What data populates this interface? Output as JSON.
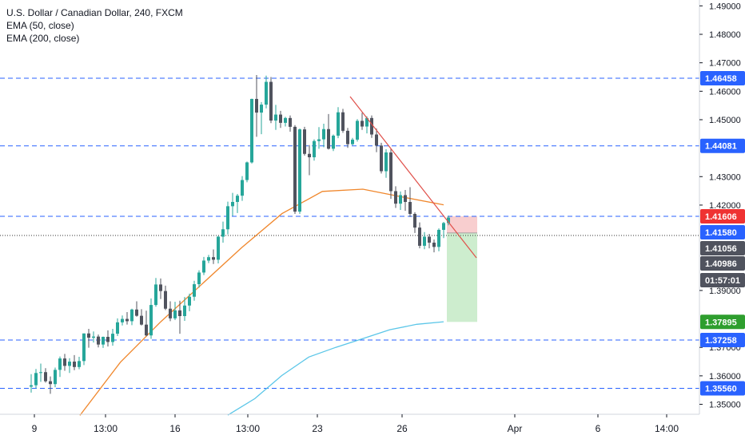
{
  "legend": {
    "title": "U.S. Dollar / Canadian Dollar, 240, FXCM",
    "ema50": "EMA (50, close)",
    "ema200": "EMA (200, close)"
  },
  "colors": {
    "up": "#26a69a",
    "down": "#50535e",
    "ema50": "#f0872c",
    "ema200": "#5bc6e8",
    "hline": "#2962ff",
    "trendline": "#e0504a",
    "risk_zone": "#f7c6c7",
    "reward_zone": "#c8ebc9"
  },
  "chart_data": {
    "type": "candlestick",
    "ylim": [
      1.3465,
      1.4915
    ],
    "y_ticks": [
      "1.49000",
      "1.48000",
      "1.47000",
      "1.46000",
      "1.45000",
      "1.43000",
      "1.42000",
      "1.39000",
      "1.37000",
      "1.36000",
      "1.35000"
    ],
    "x_ticks": [
      "9",
      "13:00",
      "16",
      "13:00",
      "23",
      "26",
      "Apr",
      "6",
      "14:00"
    ],
    "horizontal_levels": [
      1.46458,
      1.44081,
      1.41606,
      1.37258,
      1.3556
    ],
    "price_labels": [
      {
        "text": "1.46458",
        "value": 1.46458,
        "kind": "level"
      },
      {
        "text": "1.44081",
        "value": 1.44081,
        "kind": "level"
      },
      {
        "text": "1.41606",
        "value": 1.41606,
        "kind": "stop"
      },
      {
        "text": "1.41580",
        "value": 1.4158,
        "kind": "entry"
      },
      {
        "text": "1.41056",
        "value": 1.41056,
        "kind": "last"
      },
      {
        "text": "1.40986",
        "value": 1.40986,
        "kind": "last"
      },
      {
        "text": "01:57:01",
        "value": 1.4066,
        "kind": "countdown"
      },
      {
        "text": "1.37895",
        "value": 1.37895,
        "kind": "target"
      },
      {
        "text": "1.37258",
        "value": 1.37258,
        "kind": "level"
      },
      {
        "text": "1.35560",
        "value": 1.3556,
        "kind": "level"
      }
    ],
    "position": {
      "entry": 1.4158,
      "stop": 1.41606,
      "target": 1.37895
    },
    "trendline": [
      [
        1.4578,
        1.4578
      ],
      [
        1.409,
        1.409
      ]
    ],
    "candles": [
      [
        1.3562,
        1.3606,
        1.3541,
        1.3567
      ],
      [
        1.3567,
        1.3624,
        1.3556,
        1.361
      ],
      [
        1.361,
        1.3643,
        1.3579,
        1.3613
      ],
      [
        1.3613,
        1.3627,
        1.3576,
        1.3581
      ],
      [
        1.3581,
        1.3598,
        1.3537,
        1.3571
      ],
      [
        1.3571,
        1.3629,
        1.356,
        1.3621
      ],
      [
        1.3621,
        1.3668,
        1.3596,
        1.3661
      ],
      [
        1.3661,
        1.3677,
        1.3618,
        1.3635
      ],
      [
        1.3635,
        1.3662,
        1.361,
        1.365
      ],
      [
        1.365,
        1.3673,
        1.362,
        1.3631
      ],
      [
        1.3631,
        1.3667,
        1.3623,
        1.3652
      ],
      [
        1.3652,
        1.3749,
        1.3638,
        1.3749
      ],
      [
        1.3749,
        1.3765,
        1.3699,
        1.3734
      ],
      [
        1.3734,
        1.3756,
        1.3717,
        1.3738
      ],
      [
        1.3738,
        1.3745,
        1.37,
        1.371
      ],
      [
        1.371,
        1.3738,
        1.3698,
        1.3737
      ],
      [
        1.3737,
        1.376,
        1.3703,
        1.3719
      ],
      [
        1.3719,
        1.3765,
        1.3706,
        1.3748
      ],
      [
        1.3748,
        1.3802,
        1.374,
        1.3788
      ],
      [
        1.3788,
        1.3812,
        1.3777,
        1.38
      ],
      [
        1.38,
        1.3824,
        1.378,
        1.3792
      ],
      [
        1.3792,
        1.3836,
        1.3778,
        1.3833
      ],
      [
        1.3833,
        1.3862,
        1.3808,
        1.3811
      ],
      [
        1.3811,
        1.3834,
        1.3777,
        1.378
      ],
      [
        1.378,
        1.3829,
        1.3739,
        1.3742
      ],
      [
        1.3742,
        1.3872,
        1.373,
        1.3849
      ],
      [
        1.3849,
        1.3944,
        1.3843,
        1.3921
      ],
      [
        1.3921,
        1.3942,
        1.387,
        1.3898
      ],
      [
        1.3898,
        1.3917,
        1.3831,
        1.3836
      ],
      [
        1.3836,
        1.3862,
        1.3792,
        1.3802
      ],
      [
        1.3802,
        1.386,
        1.3796,
        1.383
      ],
      [
        1.383,
        1.3864,
        1.3748,
        1.381
      ],
      [
        1.381,
        1.3877,
        1.3793,
        1.3847
      ],
      [
        1.3847,
        1.3889,
        1.3827,
        1.3878
      ],
      [
        1.3878,
        1.3934,
        1.3864,
        1.3922
      ],
      [
        1.3922,
        1.3971,
        1.391,
        1.3963
      ],
      [
        1.3963,
        1.4018,
        1.3954,
        1.4005
      ],
      [
        1.4005,
        1.4025,
        1.3996,
        1.4017
      ],
      [
        1.4017,
        1.4044,
        1.3993,
        1.4008
      ],
      [
        1.4008,
        1.4092,
        1.3995,
        1.4089
      ],
      [
        1.4089,
        1.4142,
        1.4068,
        1.4115
      ],
      [
        1.4115,
        1.4212,
        1.4097,
        1.4196
      ],
      [
        1.4196,
        1.4243,
        1.4162,
        1.4211
      ],
      [
        1.4211,
        1.4239,
        1.4172,
        1.4233
      ],
      [
        1.4233,
        1.4302,
        1.4215,
        1.4288
      ],
      [
        1.4288,
        1.4353,
        1.428,
        1.435
      ],
      [
        1.435,
        1.4574,
        1.4346,
        1.4573
      ],
      [
        1.4573,
        1.4657,
        1.444,
        1.4525
      ],
      [
        1.4525,
        1.4562,
        1.4449,
        1.4553
      ],
      [
        1.4553,
        1.4655,
        1.454,
        1.4633
      ],
      [
        1.4633,
        1.465,
        1.4488,
        1.4497
      ],
      [
        1.4497,
        1.4552,
        1.4464,
        1.4518
      ],
      [
        1.4518,
        1.4531,
        1.4471,
        1.4489
      ],
      [
        1.4489,
        1.451,
        1.4476,
        1.4506
      ],
      [
        1.4506,
        1.4515,
        1.4458,
        1.4475
      ],
      [
        1.4475,
        1.4481,
        1.4169,
        1.4177
      ],
      [
        1.4177,
        1.4469,
        1.4169,
        1.4466
      ],
      [
        1.4466,
        1.4475,
        1.4374,
        1.438
      ],
      [
        1.438,
        1.4411,
        1.4305,
        1.4368
      ],
      [
        1.4368,
        1.4431,
        1.4356,
        1.4425
      ],
      [
        1.4425,
        1.4474,
        1.4398,
        1.4431
      ],
      [
        1.4431,
        1.4486,
        1.4403,
        1.4467
      ],
      [
        1.4467,
        1.452,
        1.4395,
        1.4398
      ],
      [
        1.4398,
        1.4448,
        1.439,
        1.4444
      ],
      [
        1.4444,
        1.4544,
        1.4435,
        1.4526
      ],
      [
        1.4526,
        1.4538,
        1.4454,
        1.4461
      ],
      [
        1.4461,
        1.4471,
        1.4401,
        1.4414
      ],
      [
        1.4414,
        1.4436,
        1.441,
        1.443
      ],
      [
        1.443,
        1.4502,
        1.4423,
        1.4496
      ],
      [
        1.4496,
        1.4524,
        1.4464,
        1.4476
      ],
      [
        1.4476,
        1.4512,
        1.4452,
        1.4506
      ],
      [
        1.4506,
        1.4515,
        1.4436,
        1.4448
      ],
      [
        1.4448,
        1.4469,
        1.4386,
        1.4409
      ],
      [
        1.4409,
        1.4419,
        1.4311,
        1.4319
      ],
      [
        1.4319,
        1.4396,
        1.4296,
        1.4385
      ],
      [
        1.4385,
        1.4397,
        1.4222,
        1.4249
      ],
      [
        1.4249,
        1.4266,
        1.419,
        1.4205
      ],
      [
        1.4205,
        1.4248,
        1.4183,
        1.4235
      ],
      [
        1.4235,
        1.4253,
        1.418,
        1.4211
      ],
      [
        1.4211,
        1.4263,
        1.4158,
        1.4169
      ],
      [
        1.4169,
        1.4175,
        1.4102,
        1.4121
      ],
      [
        1.4121,
        1.4139,
        1.4048,
        1.4057
      ],
      [
        1.4057,
        1.4105,
        1.4045,
        1.4089
      ],
      [
        1.4089,
        1.4099,
        1.4048,
        1.4068
      ],
      [
        1.4068,
        1.4079,
        1.4034,
        1.4053
      ],
      [
        1.4053,
        1.4118,
        1.4038,
        1.4113
      ],
      [
        1.4113,
        1.4141,
        1.4084,
        1.4137
      ],
      [
        1.4137,
        1.4163,
        1.4129,
        1.4156
      ]
    ],
    "ema50": [
      1.3461,
      1.3648,
      1.379,
      1.392,
      1.405,
      1.417,
      1.4248,
      1.4256,
      1.4228,
      1.4201
    ],
    "ema200": [
      1.3462,
      1.352,
      1.3601,
      1.3666,
      1.37,
      1.3731,
      1.3762,
      1.3781,
      1.379
    ]
  }
}
